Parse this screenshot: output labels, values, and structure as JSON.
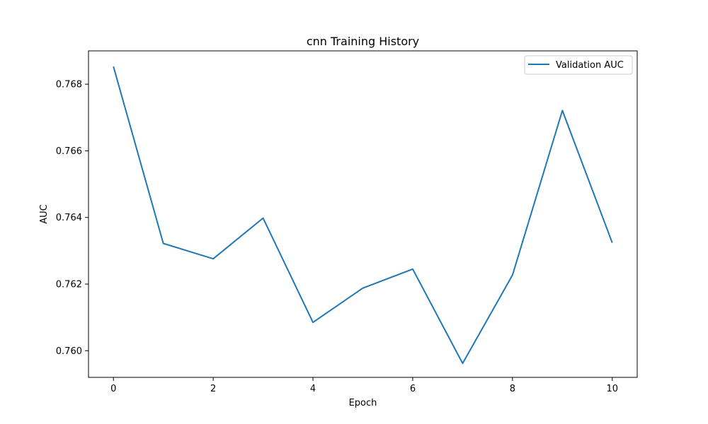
{
  "chart_data": {
    "type": "line",
    "title": "cnn Training History",
    "xlabel": "Epoch",
    "ylabel": "AUC",
    "xlim": [
      -0.5,
      10.5
    ],
    "ylim": [
      0.7592,
      0.769
    ],
    "x_ticks": [
      0,
      2,
      4,
      6,
      8,
      10
    ],
    "y_ticks": [
      0.76,
      0.762,
      0.764,
      0.766,
      0.768
    ],
    "x_tick_labels": [
      "0",
      "2",
      "4",
      "6",
      "8",
      "10"
    ],
    "y_tick_labels": [
      "0.760",
      "0.762",
      "0.764",
      "0.766",
      "0.768"
    ],
    "grid": false,
    "legend_position": "top-right",
    "series": [
      {
        "name": "Validation AUC",
        "color": "#1f77b4",
        "x": [
          0,
          1,
          2,
          3,
          4,
          5,
          6,
          7,
          8,
          9,
          10
        ],
        "values": [
          0.76853,
          0.76322,
          0.76276,
          0.76398,
          0.76085,
          0.76188,
          0.76245,
          0.75962,
          0.76227,
          0.76721,
          0.76324
        ]
      }
    ]
  }
}
